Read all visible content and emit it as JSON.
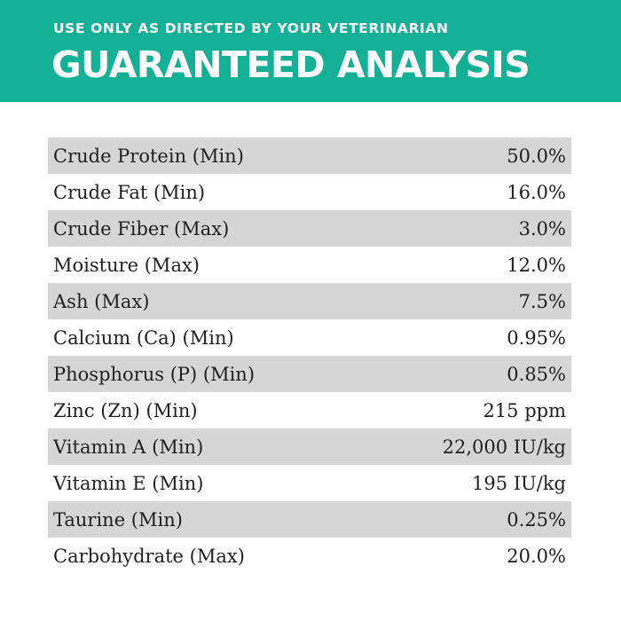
{
  "header": {
    "subtitle": "USE ONLY AS DIRECTED BY YOUR VETERINARIAN",
    "title": "GUARANTEED ANALYSIS",
    "banner_color": "#13b096",
    "row_shade_color": "#d6d6d6"
  },
  "analysis": [
    {
      "label": "Crude Protein (Min)",
      "value": "50.0%"
    },
    {
      "label": "Crude Fat (Min)",
      "value": "16.0%"
    },
    {
      "label": "Crude Fiber (Max)",
      "value": "3.0%"
    },
    {
      "label": "Moisture (Max)",
      "value": "12.0%"
    },
    {
      "label": "Ash (Max)",
      "value": "7.5%"
    },
    {
      "label": "Calcium (Ca) (Min)",
      "value": "0.95%"
    },
    {
      "label": "Phosphorus (P) (Min)",
      "value": "0.85%"
    },
    {
      "label": "Zinc (Zn) (Min)",
      "value": "215 ppm"
    },
    {
      "label": "Vitamin A (Min)",
      "value": "22,000 IU/kg"
    },
    {
      "label": "Vitamin E (Min)",
      "value": "195 IU/kg"
    },
    {
      "label": "Taurine (Min)",
      "value": "0.25%"
    },
    {
      "label": "Carbohydrate (Max)",
      "value": "20.0%"
    }
  ]
}
